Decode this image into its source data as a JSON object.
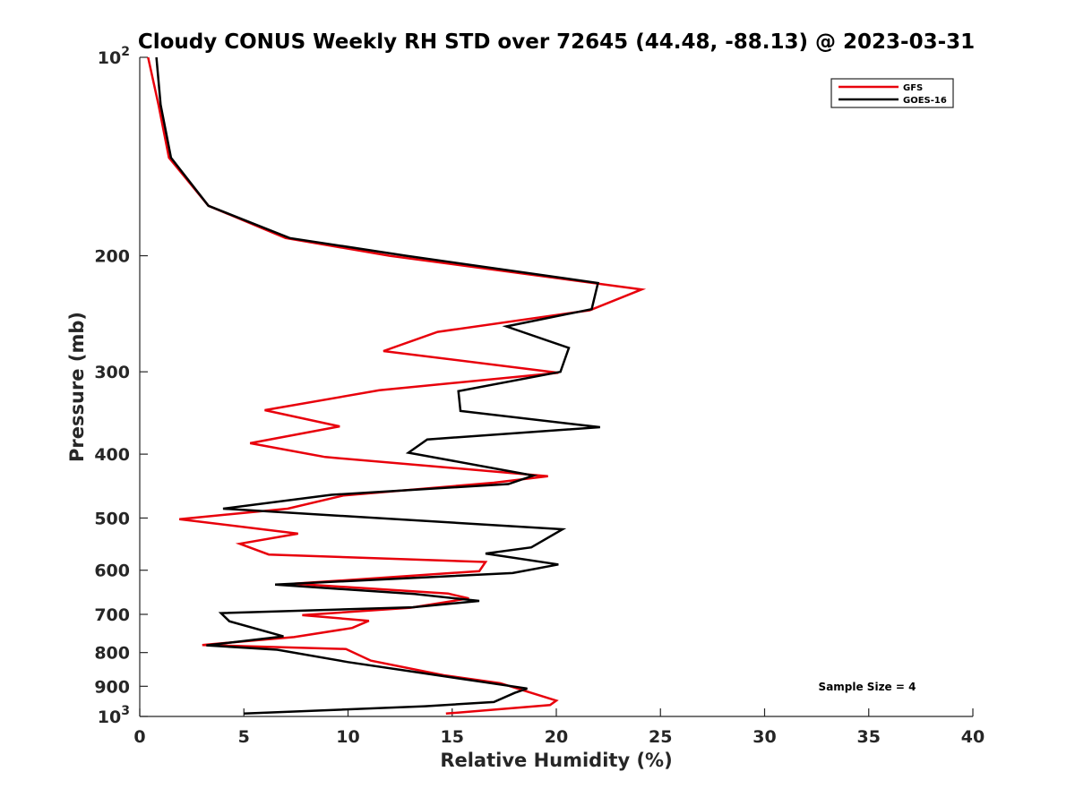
{
  "chart_data": {
    "type": "line",
    "title": "Cloudy CONUS Weekly RH STD over 72645 (44.48, -88.13) @ 2023-03-31",
    "xlabel": "Relative Humidity (%)",
    "ylabel": "Pressure (mb)",
    "xlim": [
      0,
      40
    ],
    "ylim": [
      100,
      1000
    ],
    "y_scale": "log",
    "y_reversed": true,
    "x_ticks": [
      "0",
      "5",
      "10",
      "15",
      "20",
      "25",
      "30",
      "35",
      "40"
    ],
    "y_ticks": [
      {
        "value": 100,
        "base": "10",
        "exp": "2"
      },
      {
        "value": 200,
        "label": "200"
      },
      {
        "value": 300,
        "label": "300"
      },
      {
        "value": 400,
        "label": "400"
      },
      {
        "value": 500,
        "label": "500"
      },
      {
        "value": 600,
        "label": "600"
      },
      {
        "value": 700,
        "label": "700"
      },
      {
        "value": 800,
        "label": "800"
      },
      {
        "value": 900,
        "label": "900"
      },
      {
        "value": 1000,
        "base": "10",
        "exp": "3"
      }
    ],
    "legend_position": "top-right",
    "annotation": "Sample Size = 4",
    "series": [
      {
        "name": "GFS",
        "color": "#e8000b",
        "points": [
          [
            0.4,
            100
          ],
          [
            0.9,
            118
          ],
          [
            1.4,
            142
          ],
          [
            3.3,
            168
          ],
          [
            7.0,
            188
          ],
          [
            12.0,
            200
          ],
          [
            24.1,
            225
          ],
          [
            21.6,
            242
          ],
          [
            14.3,
            261
          ],
          [
            11.7,
            279
          ],
          [
            20.1,
            301
          ],
          [
            11.5,
            320
          ],
          [
            6.0,
            343
          ],
          [
            9.6,
            363
          ],
          [
            5.3,
            385
          ],
          [
            8.9,
            404
          ],
          [
            19.6,
            432
          ],
          [
            17.0,
            442
          ],
          [
            9.8,
            462
          ],
          [
            7.1,
            484
          ],
          [
            1.9,
            502
          ],
          [
            7.6,
            528
          ],
          [
            4.8,
            547
          ],
          [
            6.2,
            568
          ],
          [
            16.6,
            583
          ],
          [
            16.3,
            602
          ],
          [
            7.4,
            629
          ],
          [
            14.8,
            651
          ],
          [
            15.8,
            662
          ],
          [
            13.0,
            684
          ],
          [
            7.8,
            702
          ],
          [
            11.0,
            716
          ],
          [
            10.2,
            734
          ],
          [
            7.4,
            758
          ],
          [
            3.0,
            779
          ],
          [
            9.9,
            790
          ],
          [
            11.1,
            823
          ],
          [
            14.6,
            866
          ],
          [
            17.3,
            890
          ],
          [
            20.0,
            946
          ],
          [
            19.7,
            961
          ],
          [
            14.7,
            990
          ]
        ]
      },
      {
        "name": "GOES-16",
        "color": "#000000",
        "points": [
          [
            0.8,
            100
          ],
          [
            1.0,
            118
          ],
          [
            1.5,
            142
          ],
          [
            3.3,
            168
          ],
          [
            7.2,
            188
          ],
          [
            12.8,
            200
          ],
          [
            22.0,
            220
          ],
          [
            21.7,
            241
          ],
          [
            17.6,
            256
          ],
          [
            20.6,
            276
          ],
          [
            20.2,
            300
          ],
          [
            15.3,
            321
          ],
          [
            15.4,
            344
          ],
          [
            22.1,
            364
          ],
          [
            13.8,
            380
          ],
          [
            12.9,
            398
          ],
          [
            18.9,
            431
          ],
          [
            17.7,
            444
          ],
          [
            9.2,
            461
          ],
          [
            4.0,
            484
          ],
          [
            20.3,
            520
          ],
          [
            18.8,
            554
          ],
          [
            16.6,
            566
          ],
          [
            20.1,
            588
          ],
          [
            17.9,
            606
          ],
          [
            6.5,
            631
          ],
          [
            13.2,
            652
          ],
          [
            16.3,
            668
          ],
          [
            13.1,
            683
          ],
          [
            3.9,
            697
          ],
          [
            4.3,
            717
          ],
          [
            6.9,
            756
          ],
          [
            3.2,
            780
          ],
          [
            6.6,
            792
          ],
          [
            10.0,
            827
          ],
          [
            18.6,
            907
          ],
          [
            18.0,
            921
          ],
          [
            17.0,
            951
          ],
          [
            13.7,
            965
          ],
          [
            5.0,
            990
          ]
        ]
      }
    ]
  }
}
